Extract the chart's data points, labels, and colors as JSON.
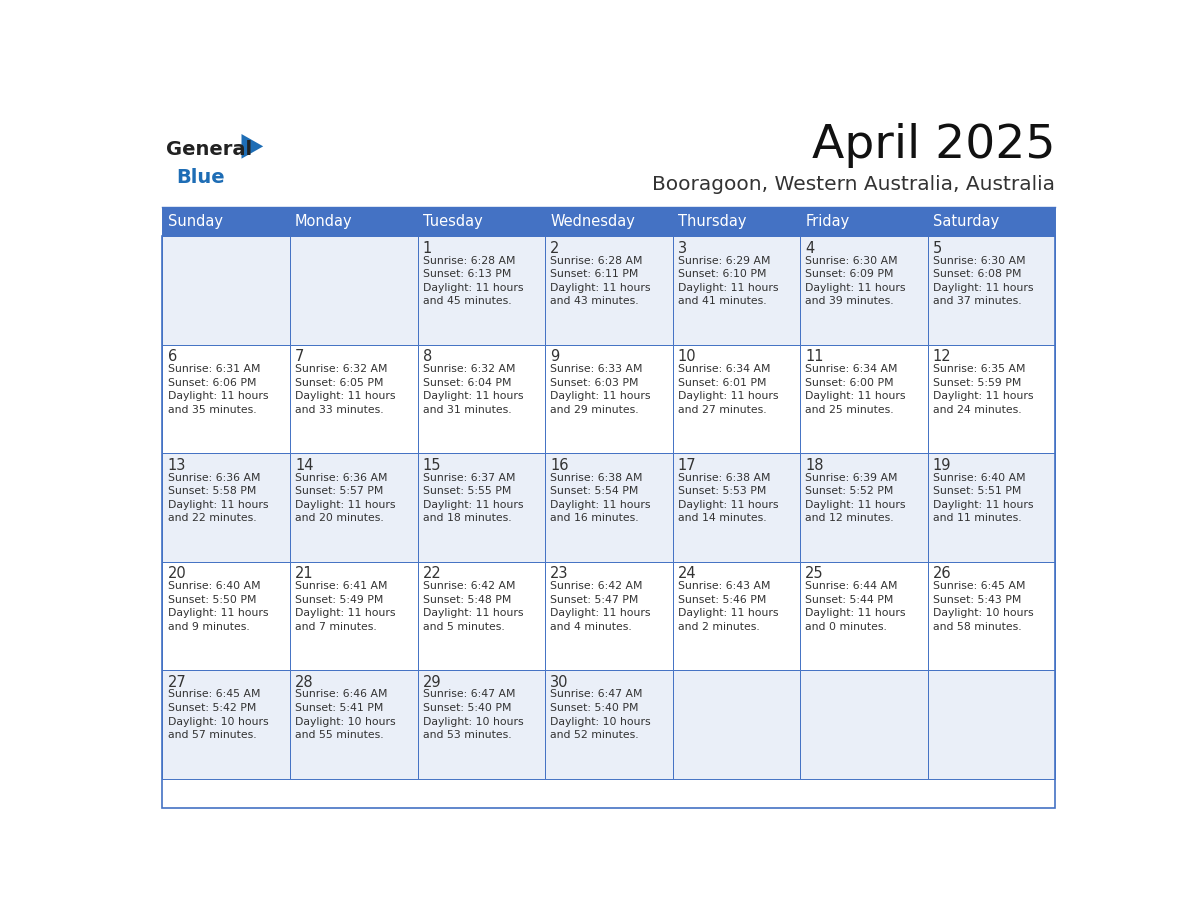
{
  "title": "April 2025",
  "subtitle": "Booragoon, Western Australia, Australia",
  "days_of_week": [
    "Sunday",
    "Monday",
    "Tuesday",
    "Wednesday",
    "Thursday",
    "Friday",
    "Saturday"
  ],
  "header_bg": "#4472C4",
  "header_fg": "#FFFFFF",
  "row_bg_odd": "#EAEFF8",
  "row_bg_even": "#FFFFFF",
  "border_color": "#4472C4",
  "text_color": "#333333",
  "title_color": "#111111",
  "subtitle_color": "#333333",
  "logo_general_color": "#222222",
  "logo_blue_color": "#1E6DB5",
  "logo_triangle_color": "#1E6DB5",
  "calendar": [
    [
      {
        "day": "",
        "info": ""
      },
      {
        "day": "",
        "info": ""
      },
      {
        "day": "1",
        "info": "Sunrise: 6:28 AM\nSunset: 6:13 PM\nDaylight: 11 hours\nand 45 minutes."
      },
      {
        "day": "2",
        "info": "Sunrise: 6:28 AM\nSunset: 6:11 PM\nDaylight: 11 hours\nand 43 minutes."
      },
      {
        "day": "3",
        "info": "Sunrise: 6:29 AM\nSunset: 6:10 PM\nDaylight: 11 hours\nand 41 minutes."
      },
      {
        "day": "4",
        "info": "Sunrise: 6:30 AM\nSunset: 6:09 PM\nDaylight: 11 hours\nand 39 minutes."
      },
      {
        "day": "5",
        "info": "Sunrise: 6:30 AM\nSunset: 6:08 PM\nDaylight: 11 hours\nand 37 minutes."
      }
    ],
    [
      {
        "day": "6",
        "info": "Sunrise: 6:31 AM\nSunset: 6:06 PM\nDaylight: 11 hours\nand 35 minutes."
      },
      {
        "day": "7",
        "info": "Sunrise: 6:32 AM\nSunset: 6:05 PM\nDaylight: 11 hours\nand 33 minutes."
      },
      {
        "day": "8",
        "info": "Sunrise: 6:32 AM\nSunset: 6:04 PM\nDaylight: 11 hours\nand 31 minutes."
      },
      {
        "day": "9",
        "info": "Sunrise: 6:33 AM\nSunset: 6:03 PM\nDaylight: 11 hours\nand 29 minutes."
      },
      {
        "day": "10",
        "info": "Sunrise: 6:34 AM\nSunset: 6:01 PM\nDaylight: 11 hours\nand 27 minutes."
      },
      {
        "day": "11",
        "info": "Sunrise: 6:34 AM\nSunset: 6:00 PM\nDaylight: 11 hours\nand 25 minutes."
      },
      {
        "day": "12",
        "info": "Sunrise: 6:35 AM\nSunset: 5:59 PM\nDaylight: 11 hours\nand 24 minutes."
      }
    ],
    [
      {
        "day": "13",
        "info": "Sunrise: 6:36 AM\nSunset: 5:58 PM\nDaylight: 11 hours\nand 22 minutes."
      },
      {
        "day": "14",
        "info": "Sunrise: 6:36 AM\nSunset: 5:57 PM\nDaylight: 11 hours\nand 20 minutes."
      },
      {
        "day": "15",
        "info": "Sunrise: 6:37 AM\nSunset: 5:55 PM\nDaylight: 11 hours\nand 18 minutes."
      },
      {
        "day": "16",
        "info": "Sunrise: 6:38 AM\nSunset: 5:54 PM\nDaylight: 11 hours\nand 16 minutes."
      },
      {
        "day": "17",
        "info": "Sunrise: 6:38 AM\nSunset: 5:53 PM\nDaylight: 11 hours\nand 14 minutes."
      },
      {
        "day": "18",
        "info": "Sunrise: 6:39 AM\nSunset: 5:52 PM\nDaylight: 11 hours\nand 12 minutes."
      },
      {
        "day": "19",
        "info": "Sunrise: 6:40 AM\nSunset: 5:51 PM\nDaylight: 11 hours\nand 11 minutes."
      }
    ],
    [
      {
        "day": "20",
        "info": "Sunrise: 6:40 AM\nSunset: 5:50 PM\nDaylight: 11 hours\nand 9 minutes."
      },
      {
        "day": "21",
        "info": "Sunrise: 6:41 AM\nSunset: 5:49 PM\nDaylight: 11 hours\nand 7 minutes."
      },
      {
        "day": "22",
        "info": "Sunrise: 6:42 AM\nSunset: 5:48 PM\nDaylight: 11 hours\nand 5 minutes."
      },
      {
        "day": "23",
        "info": "Sunrise: 6:42 AM\nSunset: 5:47 PM\nDaylight: 11 hours\nand 4 minutes."
      },
      {
        "day": "24",
        "info": "Sunrise: 6:43 AM\nSunset: 5:46 PM\nDaylight: 11 hours\nand 2 minutes."
      },
      {
        "day": "25",
        "info": "Sunrise: 6:44 AM\nSunset: 5:44 PM\nDaylight: 11 hours\nand 0 minutes."
      },
      {
        "day": "26",
        "info": "Sunrise: 6:45 AM\nSunset: 5:43 PM\nDaylight: 10 hours\nand 58 minutes."
      }
    ],
    [
      {
        "day": "27",
        "info": "Sunrise: 6:45 AM\nSunset: 5:42 PM\nDaylight: 10 hours\nand 57 minutes."
      },
      {
        "day": "28",
        "info": "Sunrise: 6:46 AM\nSunset: 5:41 PM\nDaylight: 10 hours\nand 55 minutes."
      },
      {
        "day": "29",
        "info": "Sunrise: 6:47 AM\nSunset: 5:40 PM\nDaylight: 10 hours\nand 53 minutes."
      },
      {
        "day": "30",
        "info": "Sunrise: 6:47 AM\nSunset: 5:40 PM\nDaylight: 10 hours\nand 52 minutes."
      },
      {
        "day": "",
        "info": ""
      },
      {
        "day": "",
        "info": ""
      },
      {
        "day": "",
        "info": ""
      }
    ]
  ]
}
